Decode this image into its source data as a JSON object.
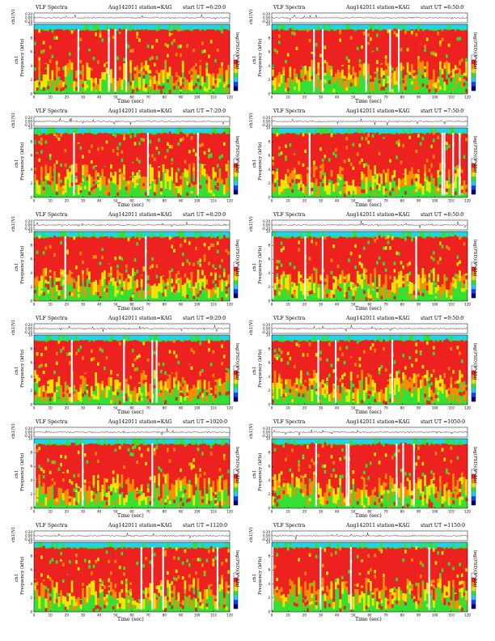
{
  "figure": {
    "header_title": "VLF Spectra",
    "date": "Aug142011",
    "station": "station=KAG",
    "start_prefix": "start  UT",
    "top_ylabel": "ch1(V)",
    "freq_ylabel_line1": "ch1",
    "freq_ylabel_line2": "Frequency  (kHz)",
    "xlabel": "Time  (sec)",
    "colorbar_label": "log(PSD)(V²/Hz)",
    "top_yticks": [
      "0.20",
      "0.00",
      "-0.20"
    ],
    "freq_yticks": [
      "0",
      "2",
      "4",
      "6",
      "8",
      "10"
    ],
    "time_xticks": [
      "0",
      "10",
      "20",
      "30",
      "40",
      "50",
      "60",
      "70",
      "80",
      "90",
      "100",
      "110",
      "120"
    ]
  },
  "chart_data": [
    {
      "type": "heatmap",
      "panel_title": "VLF Spectra",
      "start_time": "6:20:0",
      "x_range": [
        0,
        120
      ],
      "y_range": [
        0,
        10
      ],
      "top_y_range": [
        -0.2,
        0.2
      ]
    },
    {
      "type": "heatmap",
      "panel_title": "VLF Spectra",
      "start_time": "6:50:0",
      "x_range": [
        0,
        120
      ],
      "y_range": [
        0,
        10
      ],
      "top_y_range": [
        -0.2,
        0.2
      ]
    },
    {
      "type": "heatmap",
      "panel_title": "VLF Spectra",
      "start_time": "7:20:0",
      "x_range": [
        0,
        120
      ],
      "y_range": [
        0,
        10
      ],
      "top_y_range": [
        -0.2,
        0.2
      ]
    },
    {
      "type": "heatmap",
      "panel_title": "VLF Spectra",
      "start_time": "7:50:0",
      "x_range": [
        0,
        120
      ],
      "y_range": [
        0,
        10
      ],
      "top_y_range": [
        -0.2,
        0.2
      ]
    },
    {
      "type": "heatmap",
      "panel_title": "VLF Spectra",
      "start_time": "8:20:0",
      "x_range": [
        0,
        120
      ],
      "y_range": [
        0,
        10
      ],
      "top_y_range": [
        -0.2,
        0.2
      ]
    },
    {
      "type": "heatmap",
      "panel_title": "VLF Spectra",
      "start_time": "8:50:0",
      "x_range": [
        0,
        120
      ],
      "y_range": [
        0,
        10
      ],
      "top_y_range": [
        -0.2,
        0.2
      ]
    },
    {
      "type": "heatmap",
      "panel_title": "VLF Spectra",
      "start_time": "9:20:0",
      "x_range": [
        0,
        120
      ],
      "y_range": [
        0,
        10
      ],
      "top_y_range": [
        -0.2,
        0.2
      ]
    },
    {
      "type": "heatmap",
      "panel_title": "VLF Spectra",
      "start_time": "9:50:0",
      "x_range": [
        0,
        120
      ],
      "y_range": [
        0,
        10
      ],
      "top_y_range": [
        -0.2,
        0.2
      ]
    },
    {
      "type": "heatmap",
      "panel_title": "VLF Spectra",
      "start_time": "1020:0",
      "x_range": [
        0,
        120
      ],
      "y_range": [
        0,
        10
      ],
      "top_y_range": [
        -0.2,
        0.2
      ]
    },
    {
      "type": "heatmap",
      "panel_title": "VLF Spectra",
      "start_time": "1050:0",
      "x_range": [
        0,
        120
      ],
      "y_range": [
        0,
        10
      ],
      "top_y_range": [
        -0.2,
        0.2
      ]
    },
    {
      "type": "heatmap",
      "panel_title": "VLF Spectra",
      "start_time": "1120:0",
      "x_range": [
        0,
        120
      ],
      "y_range": [
        0,
        10
      ],
      "top_y_range": [
        -0.2,
        0.2
      ]
    },
    {
      "type": "heatmap",
      "panel_title": "VLF Spectra",
      "start_time": "1150:0",
      "x_range": [
        0,
        120
      ],
      "y_range": [
        0,
        10
      ],
      "top_y_range": [
        -0.2,
        0.2
      ]
    }
  ],
  "colors": {
    "red": "#ee2020",
    "orange": "#ff8c00",
    "yellow": "#f2e600",
    "green": "#33e033",
    "cyan": "#21d4e8",
    "blue": "#1a3cff",
    "navy": "#000066",
    "white": "#ffffff"
  }
}
